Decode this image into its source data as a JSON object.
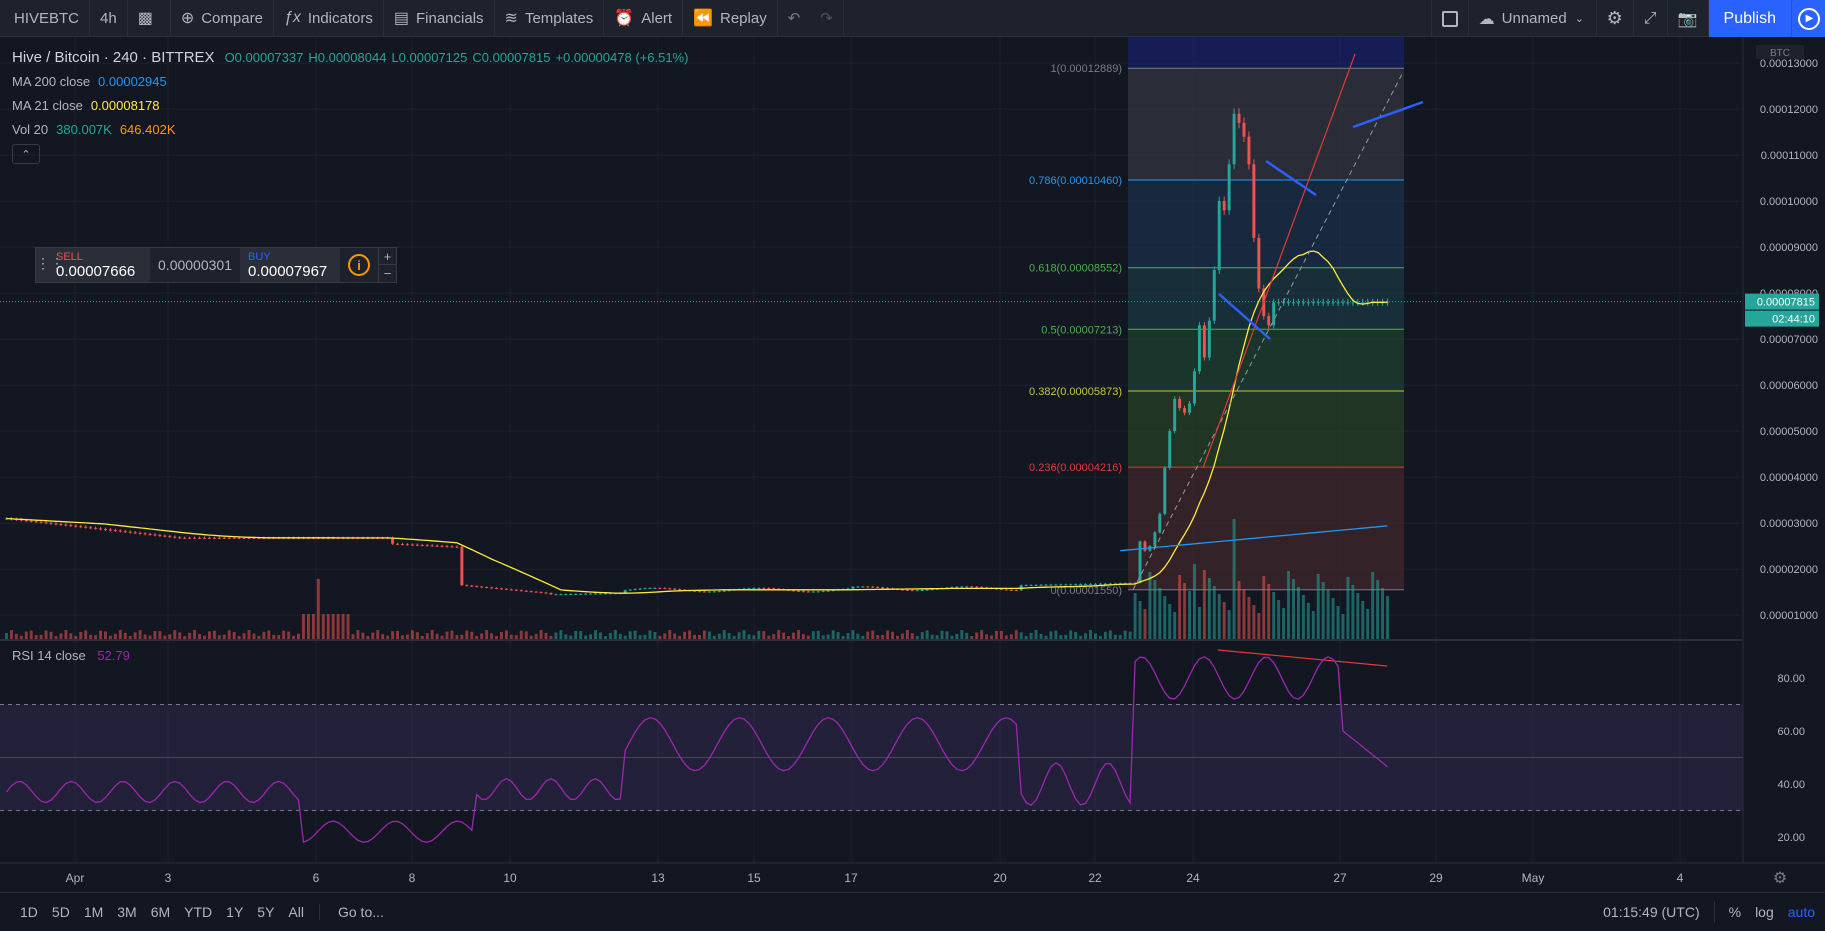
{
  "toolbar": {
    "symbol": "HIVEBTC",
    "interval": "4h",
    "compare": "Compare",
    "indicators": "Indicators",
    "financials": "Financials",
    "templates": "Templates",
    "alert": "Alert",
    "replay": "Replay",
    "layout_name": "Unnamed",
    "publish": "Publish"
  },
  "legend": {
    "title": "Hive / Bitcoin · 240 · BITTREX",
    "open": "O0.00007337",
    "high": "H0.00008044",
    "low": "L0.00007125",
    "close": "C0.00007815",
    "change": "+0.00000478 (+6.51%)",
    "ma200_label": "MA 200 close",
    "ma200_value": "0.00002945",
    "ma21_label": "MA 21 close",
    "ma21_value": "0.00008178",
    "vol_label": "Vol 20",
    "vol_value1": "380.007K",
    "vol_value2": "646.402K"
  },
  "trade": {
    "sell_label": "SELL",
    "sell_price": "0.00007666",
    "spread": "0.00000301",
    "buy_label": "BUY",
    "buy_price": "0.00007967"
  },
  "price_axis": {
    "currency": "BTC",
    "ticks": [
      "0.00013000",
      "0.00012000",
      "0.00011000",
      "0.00010000",
      "0.00009000",
      "0.00008000",
      "0.00007000",
      "0.00006000",
      "0.00005000",
      "0.00004000",
      "0.00003000",
      "0.00002000",
      "0.00001000"
    ],
    "last_price": "0.00007815",
    "countdown": "02:44:10"
  },
  "fib_levels": [
    {
      "label": "1(0.00012889)",
      "color": "#787b86"
    },
    {
      "label": "0.786(0.00010460)",
      "color": "#2196f3"
    },
    {
      "label": "0.618(0.00008552)",
      "color": "#4caf50"
    },
    {
      "label": "0.5(0.00007213)",
      "color": "#4caf50"
    },
    {
      "label": "0.382(0.00005873)",
      "color": "#c0ca33"
    },
    {
      "label": "0.236(0.00004216)",
      "color": "#e53935"
    },
    {
      "label": "0(0.00001550)",
      "color": "#787b86"
    }
  ],
  "rsi": {
    "label": "RSI 14 close",
    "value": "52.79",
    "ticks": [
      "80.00",
      "60.00",
      "40.00",
      "20.00"
    ]
  },
  "time_axis": [
    "Apr",
    "3",
    "6",
    "8",
    "10",
    "13",
    "15",
    "17",
    "20",
    "22",
    "24",
    "27",
    "29",
    "May",
    "4"
  ],
  "bottom": {
    "ranges": [
      "1D",
      "5D",
      "1M",
      "3M",
      "6M",
      "YTD",
      "1Y",
      "5Y",
      "All"
    ],
    "goto": "Go to...",
    "clock": "01:15:49 (UTC)",
    "percent": "%",
    "log": "log",
    "auto": "auto"
  },
  "colors": {
    "up": "#26a69a",
    "down": "#ef5350",
    "ma21": "#ffeb3b",
    "ma200": "#2196f3",
    "rsi": "#9c27b0",
    "accent": "#2962ff"
  }
}
